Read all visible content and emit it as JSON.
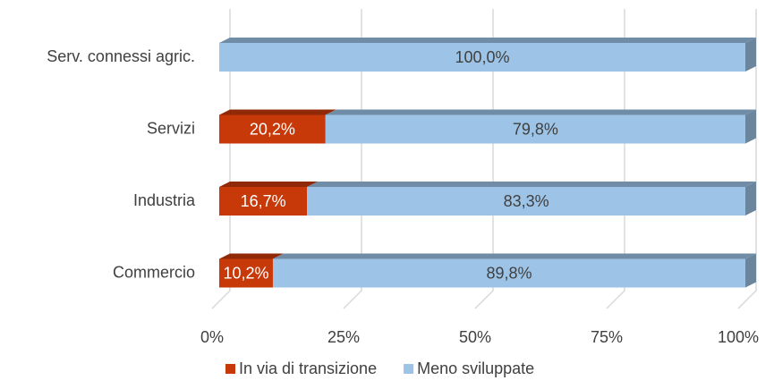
{
  "chart_data": {
    "type": "bar3d_stacked_horizontal",
    "categories": [
      "Serv. connessi agric.",
      "Servizi",
      "Industria",
      "Commercio"
    ],
    "series": [
      {
        "name": "In via di transizione",
        "color": "#c8390a",
        "values": [
          0,
          20.2,
          16.7,
          10.2
        ],
        "value_labels": [
          null,
          "20,2%",
          "16,7%",
          "10,2%"
        ]
      },
      {
        "name": "Meno sviluppate",
        "color": "#9dc3e6",
        "values": [
          100,
          79.8,
          83.3,
          89.8
        ],
        "value_labels": [
          "100,0%",
          "79,8%",
          "83,3%",
          "89,8%"
        ]
      }
    ],
    "xlim": [
      0,
      100
    ],
    "xticks": [
      {
        "value": 0,
        "label": "0%"
      },
      {
        "value": 25,
        "label": "25%"
      },
      {
        "value": 50,
        "label": "50%"
      },
      {
        "value": 75,
        "label": "75%"
      },
      {
        "value": 100,
        "label": "100%"
      }
    ],
    "grid": true,
    "legend": "bottom"
  }
}
